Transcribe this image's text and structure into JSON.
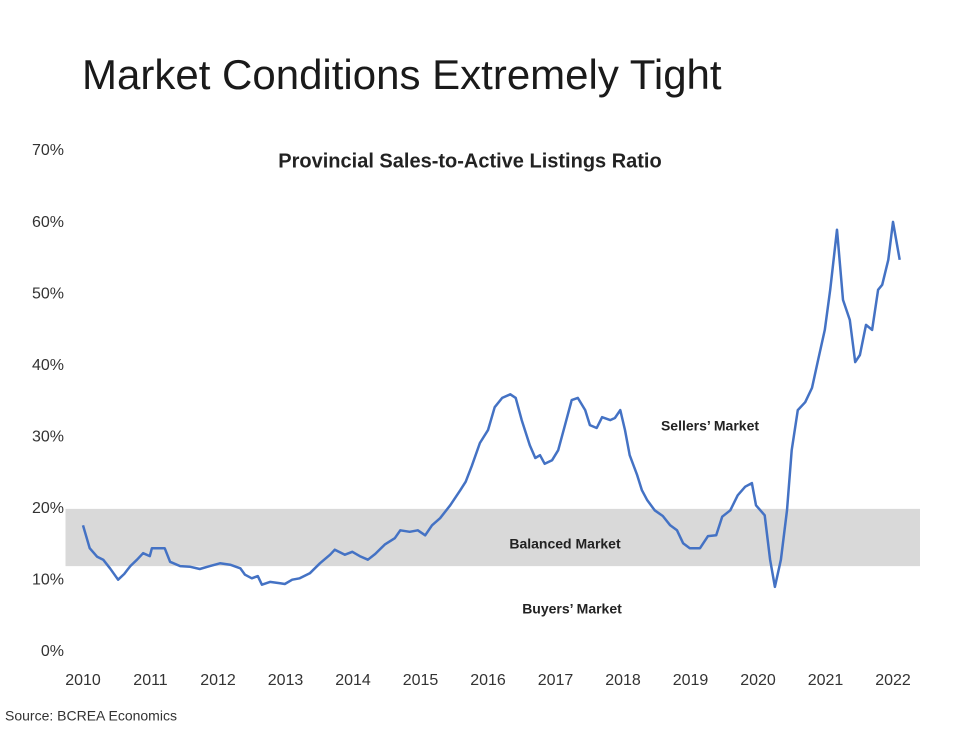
{
  "title": "Market Conditions Extremely Tight",
  "source": "Source: BCREA Economics",
  "chart_data": {
    "type": "line",
    "title": "Provincial Sales-to-Active Listings Ratio",
    "annotations": [
      "Sellers’ Market",
      "Balanced Market",
      "Buyers’ Market"
    ],
    "shaded_range": [
      12,
      20
    ],
    "shade_color": "#d9d9d9",
    "color": "#4472c4",
    "grid": false,
    "xlim": [
      2009.8,
      2022.4
    ],
    "xticks": [
      2010,
      2011,
      2012,
      2013,
      2014,
      2015,
      2016,
      2017,
      2018,
      2019,
      2020,
      2021,
      2022
    ],
    "ylim": [
      0,
      70
    ],
    "yticks": [
      {
        "value": 0,
        "label": "0%"
      },
      {
        "value": 10,
        "label": "10%"
      },
      {
        "value": 20,
        "label": "20%"
      },
      {
        "value": 30,
        "label": "30%"
      },
      {
        "value": 40,
        "label": "40%"
      },
      {
        "value": 50,
        "label": "50%"
      },
      {
        "value": 60,
        "label": "60%"
      },
      {
        "value": 70,
        "label": "70%"
      }
    ],
    "x": [
      2010.0,
      2010.1,
      2010.21,
      2010.3,
      2010.4,
      2010.52,
      2010.61,
      2010.7,
      2010.8,
      2010.89,
      2010.99,
      2011.02,
      2011.14,
      2011.21,
      2011.29,
      2011.44,
      2011.59,
      2011.73,
      2011.88,
      2012.03,
      2012.18,
      2012.33,
      2012.4,
      2012.5,
      2012.59,
      2012.65,
      2012.77,
      2012.92,
      2012.99,
      2013.1,
      2013.21,
      2013.36,
      2013.51,
      2013.66,
      2013.73,
      2013.88,
      2013.99,
      2014.1,
      2014.22,
      2014.33,
      2014.47,
      2014.62,
      2014.7,
      2014.84,
      2014.96,
      2015.07,
      2015.17,
      2015.29,
      2015.44,
      2015.59,
      2015.67,
      2015.76,
      2015.88,
      2016.0,
      2016.1,
      2016.21,
      2016.33,
      2016.41,
      2016.5,
      2016.62,
      2016.7,
      2016.77,
      2016.84,
      2016.95,
      2017.04,
      2017.14,
      2017.24,
      2017.33,
      2017.44,
      2017.51,
      2017.61,
      2017.69,
      2017.81,
      2017.88,
      2017.96,
      2018.03,
      2018.1,
      2018.21,
      2018.28,
      2018.36,
      2018.47,
      2018.59,
      2018.7,
      2018.8,
      2018.89,
      2018.99,
      2019.14,
      2019.26,
      2019.38,
      2019.47,
      2019.59,
      2019.7,
      2019.81,
      2019.91,
      2019.97,
      2020.1,
      2020.18,
      2020.25,
      2020.34,
      2020.43,
      2020.5,
      2020.59,
      2020.7,
      2020.8,
      2020.89,
      2020.99,
      2021.07,
      2021.17,
      2021.26,
      2021.36,
      2021.44,
      2021.51,
      2021.6,
      2021.69,
      2021.78,
      2021.84,
      2021.93,
      2022.0,
      2022.1
    ],
    "values": [
      17.7,
      14.5,
      13.3,
      12.9,
      11.7,
      10.1,
      10.9,
      12.0,
      12.9,
      13.8,
      13.4,
      14.5,
      14.5,
      14.5,
      12.6,
      12.0,
      11.9,
      11.6,
      12.0,
      12.4,
      12.2,
      11.7,
      10.8,
      10.3,
      10.6,
      9.4,
      9.8,
      9.6,
      9.5,
      10.1,
      10.3,
      11.0,
      12.4,
      13.6,
      14.3,
      13.6,
      14.0,
      13.4,
      12.9,
      13.7,
      15.0,
      15.9,
      17.0,
      16.8,
      17.0,
      16.3,
      17.7,
      18.7,
      20.5,
      22.6,
      23.8,
      26.0,
      29.2,
      31.0,
      34.2,
      35.5,
      36.0,
      35.5,
      32.4,
      28.9,
      27.1,
      27.5,
      26.3,
      26.8,
      28.2,
      31.7,
      35.2,
      35.5,
      33.8,
      31.7,
      31.3,
      32.8,
      32.4,
      32.7,
      33.8,
      31.0,
      27.5,
      24.7,
      22.6,
      21.2,
      19.8,
      19.0,
      17.7,
      17.0,
      15.2,
      14.5,
      14.5,
      16.2,
      16.3,
      18.9,
      19.8,
      21.9,
      23.1,
      23.6,
      20.5,
      19.1,
      12.9,
      9.1,
      12.9,
      19.8,
      28.2,
      33.8,
      34.9,
      36.9,
      40.8,
      45.0,
      50.6,
      59.0,
      49.2,
      46.4,
      40.5,
      41.5,
      45.7,
      45.0,
      50.6,
      51.3,
      54.8,
      60.1,
      54.8
    ]
  }
}
